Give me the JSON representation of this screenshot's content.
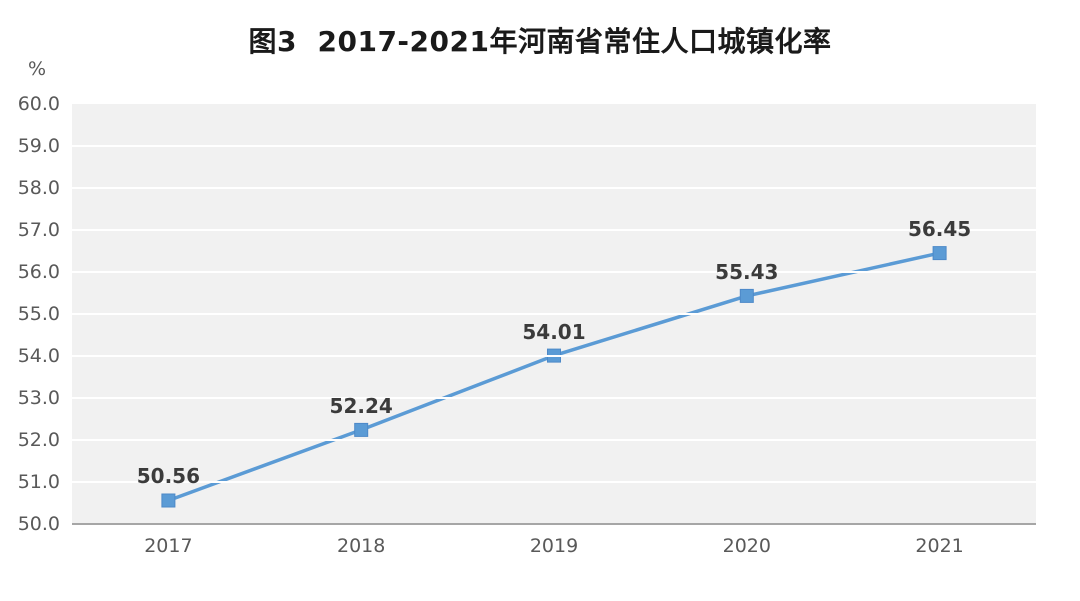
{
  "title": "图3  2017-2021年河南省常住人口城镇化率",
  "colors": {
    "title_text": "#1a1a1a",
    "tick_text": "#595959",
    "data_label_text": "#3b3b3b",
    "plot_band": "#f1f1f1",
    "gridline": "#ffffff",
    "axis_line": "#a6a6a6",
    "series_line": "#5B9BD5",
    "marker_fill": "#5B9BD5",
    "marker_stroke": "#4d89c8"
  },
  "chart_data": {
    "type": "line",
    "title": "图3  2017-2021年河南省常住人口城镇化率",
    "categories": [
      "2017",
      "2018",
      "2019",
      "2020",
      "2021"
    ],
    "values": [
      50.56,
      52.24,
      54.01,
      55.43,
      56.45
    ],
    "data_labels": [
      "50.56",
      "52.24",
      "54.01",
      "55.43",
      "56.45"
    ],
    "series_name": "常住人口城镇化率",
    "xlabel": "",
    "ylabel": "%",
    "ylim": [
      50.0,
      60.0
    ],
    "y_tick_step": 1.0,
    "y_tick_labels": [
      "60.0",
      "59.0",
      "58.0",
      "57.0",
      "56.0",
      "55.0",
      "54.0",
      "53.0",
      "52.0",
      "51.0",
      "50.0"
    ],
    "grid": "horizontal",
    "legend": "none",
    "marker": "square"
  }
}
